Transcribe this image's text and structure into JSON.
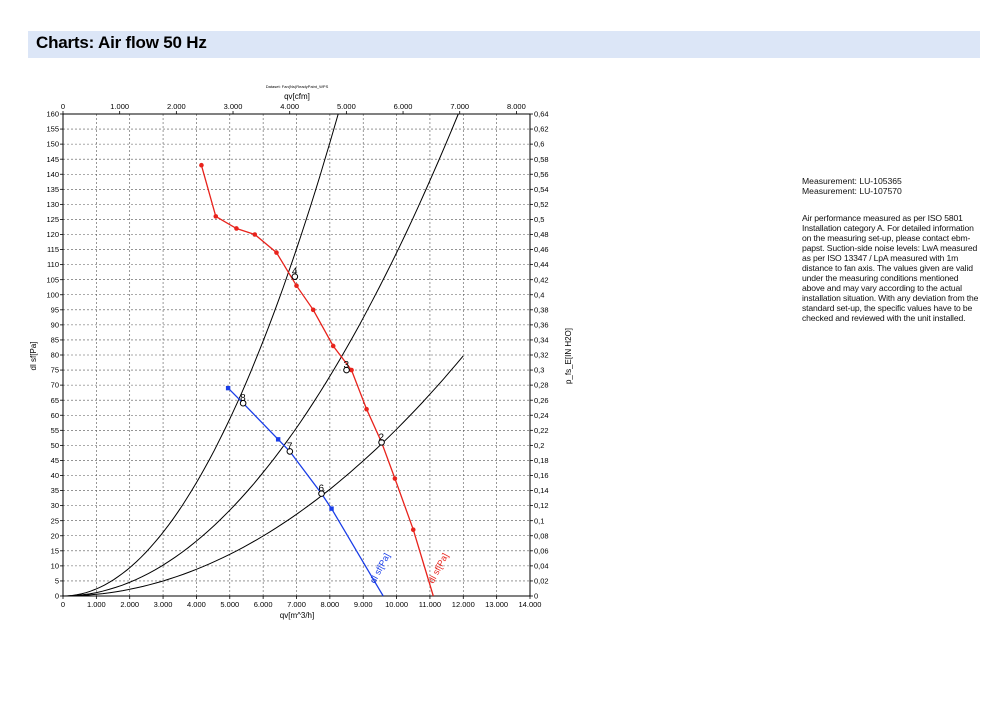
{
  "page": {
    "title": "Charts: Air flow 50 Hz"
  },
  "side_panel": {
    "measurements": [
      "Measurement: LU-105365",
      "Measurement: LU-107570"
    ],
    "description": "Air performance measured as per ISO 5801 Installation category A. For detailed information on the measuring set-up, please contact ebm-papst. Suction-side noise levels: LwA measured as per ISO 13347 / LpA measured with 1m distance to fan axis. The values given are valid under the measuring conditions mentioned above and may vary according to the actual installation situation. With any deviation from the standard set-up, the specific values have to be checked and reviewed with the unit installed."
  },
  "chart_data": {
    "type": "line",
    "top_caption": "Dataset: Fan(Ns)ReadyPaint_WPS",
    "xlabel": "qv[m^3/h]",
    "x2label": "qv[cfm]",
    "ylabel": "dl sf[Pa]",
    "y2label": "p_fs_E[IN H2O]",
    "xlim": [
      0,
      14000
    ],
    "x2lim": [
      0,
      8240
    ],
    "ylim": [
      0,
      160
    ],
    "y2lim": [
      0,
      0.643
    ],
    "x_ticks": [
      "0",
      "1.000",
      "2.000",
      "3.000",
      "4.000",
      "5.000",
      "6.000",
      "7.000",
      "8.000",
      "9.000",
      "10.000",
      "11.000",
      "12.000",
      "13.000",
      "14.000"
    ],
    "x2_ticks": [
      "0",
      "1.000",
      "2.000",
      "3.000",
      "4.000",
      "5.000",
      "6.000",
      "7.000",
      "8.000"
    ],
    "y_ticks": [
      "0",
      "5",
      "10",
      "15",
      "20",
      "25",
      "30",
      "35",
      "40",
      "45",
      "50",
      "55",
      "60",
      "65",
      "70",
      "75",
      "80",
      "85",
      "90",
      "95",
      "100",
      "105",
      "110",
      "115",
      "120",
      "125",
      "130",
      "135",
      "140",
      "145",
      "150",
      "155",
      "160"
    ],
    "y2_ticks": [
      "0",
      "0,02",
      "0,04",
      "0,06",
      "0,08",
      "0,1",
      "0,12",
      "0,14",
      "0,16",
      "0,18",
      "0,2",
      "0,22",
      "0,24",
      "0,26",
      "0,28",
      "0,3",
      "0,32",
      "0,34",
      "0,36",
      "0,38",
      "0,4",
      "0,42",
      "0,44",
      "0,46",
      "0,48",
      "0,5",
      "0,52",
      "0,54",
      "0,56",
      "0,58",
      "0,6",
      "0,62",
      "0,64"
    ],
    "grid": true,
    "series": [
      {
        "name": "dl sf[Pa]",
        "color": "#e8231c",
        "x": [
          4150,
          4580,
          5200,
          5750,
          6400,
          7000,
          7500,
          8100,
          8650,
          9100,
          9550,
          9950,
          10500,
          11100
        ],
        "y": [
          143,
          126,
          122,
          120,
          114,
          103,
          95,
          83,
          75,
          62,
          51,
          39,
          22,
          0
        ]
      },
      {
        "name": "dl sf[Pa]",
        "color": "#1a3ee8",
        "x": [
          4950,
          5400,
          6450,
          6800,
          7750,
          8050,
          9600
        ],
        "y": [
          69,
          64,
          52,
          48,
          34,
          29,
          0
        ]
      }
    ],
    "system_curves": [
      {
        "x_at_160": 8250,
        "color": "#000000"
      },
      {
        "x_at_160": 11850,
        "color": "#000000"
      },
      {
        "x_at_160": 17000,
        "x_end": 12000,
        "color": "#000000"
      }
    ],
    "operating_points": [
      {
        "label": "2",
        "x": 9550,
        "y": 51
      },
      {
        "label": "3",
        "x": 8500,
        "y": 75
      },
      {
        "label": "4",
        "x": 6950,
        "y": 106
      },
      {
        "label": "6",
        "x": 7750,
        "y": 34
      },
      {
        "label": "7",
        "x": 6800,
        "y": 48
      },
      {
        "label": "8",
        "x": 5400,
        "y": 64
      }
    ],
    "curve_labels": [
      {
        "text": "dl sf[Pa]",
        "color": "#1a3ee8",
        "x": 9350,
        "y": 4
      },
      {
        "text": "dl sf[Pa]",
        "color": "#e8231c",
        "x": 11100,
        "y": 4
      }
    ]
  }
}
